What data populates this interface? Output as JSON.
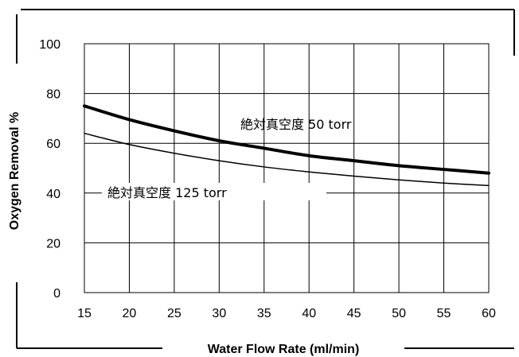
{
  "chart_data": {
    "type": "line",
    "title": "",
    "xlabel": "Water Flow Rate (ml/min)",
    "ylabel": "Oxygen Removal %",
    "xlim": [
      15,
      60
    ],
    "ylim": [
      0,
      100
    ],
    "x_ticks": [
      "15",
      "20",
      "25",
      "30",
      "35",
      "40",
      "45",
      "50",
      "55",
      "60"
    ],
    "y_ticks": [
      "0",
      "20",
      "40",
      "60",
      "80",
      "100"
    ],
    "grid": true,
    "legend": "none",
    "series": [
      {
        "name": "絶対真空度 50 torr",
        "color": "#000000",
        "emphasis": "thick",
        "x": [
          15,
          20,
          25,
          30,
          35,
          40,
          45,
          50,
          55,
          60
        ],
        "y": [
          75,
          69.5,
          65,
          61,
          58,
          55,
          53,
          51,
          49.5,
          48
        ]
      },
      {
        "name": "絶対真空度 125 torr",
        "color": "#000000",
        "emphasis": "thin",
        "x": [
          15,
          20,
          25,
          30,
          35,
          40,
          45,
          50,
          55,
          60
        ],
        "y": [
          64,
          59.5,
          56,
          53,
          50.5,
          48.5,
          46.8,
          45.3,
          44,
          43
        ]
      }
    ],
    "annotations": [
      "絶対真空度 50 torr",
      "絶対真空度 125 torr"
    ]
  }
}
